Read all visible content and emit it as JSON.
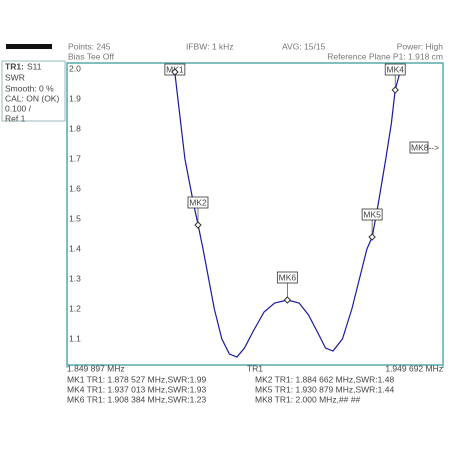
{
  "header": {
    "points": "Points: 245",
    "ifbw": "IFBW: 1 kHz",
    "avg": "AVG: 15/15",
    "power": "Power: High",
    "bias": "Bias Tee Off",
    "ref_plane": "Reference Plane P1: 1.918 cm"
  },
  "trace_panel": {
    "trace": "TR1:",
    "param": "S11",
    "format": "SWR",
    "smooth": "Smooth: 0 %",
    "cal": "CAL: ON (OK)",
    "scale": "0.100 /",
    "ref": "Ref 1"
  },
  "chart_data": {
    "type": "line",
    "trace_label": "TR1",
    "xlim": [
      1.849897,
      1.949692
    ],
    "xticks": [
      {
        "value": 1.849897,
        "label": "1.849 897 MHz"
      },
      {
        "value": 1.949692,
        "label": "1.949 692 MHz"
      }
    ],
    "ylim": [
      1.0,
      2.02
    ],
    "yticks": [
      1.1,
      1.2,
      1.3,
      1.4,
      1.5,
      1.6,
      1.7,
      1.8,
      1.9,
      {
        "value": 2,
        "label": "2.0"
      }
    ],
    "series": [
      {
        "name": "TR1",
        "color": "#1a1aa0",
        "x": [
          1.8778,
          1.8785,
          1.8798,
          1.8812,
          1.8835,
          1.8847,
          1.886,
          1.8875,
          1.889,
          1.891,
          1.893,
          1.895,
          1.897,
          1.8995,
          1.9022,
          1.905,
          1.9084,
          1.9115,
          1.914,
          1.9165,
          1.9185,
          1.9205,
          1.923,
          1.9255,
          1.9275,
          1.9295,
          1.9309,
          1.9325,
          1.9345,
          1.936,
          1.937,
          1.9385
        ],
        "values": [
          2.0,
          1.99,
          1.85,
          1.7,
          1.55,
          1.48,
          1.4,
          1.3,
          1.2,
          1.1,
          1.05,
          1.04,
          1.07,
          1.13,
          1.19,
          1.22,
          1.23,
          1.22,
          1.18,
          1.12,
          1.07,
          1.06,
          1.1,
          1.2,
          1.3,
          1.4,
          1.44,
          1.55,
          1.7,
          1.82,
          1.93,
          2.0
        ]
      }
    ],
    "markers": [
      {
        "label": "MK1",
        "x": 1.878527,
        "y": 1.99
      },
      {
        "label": "MK2",
        "x": 1.884662,
        "y": 1.48
      },
      {
        "label": "MK6",
        "x": 1.908384,
        "y": 1.23
      },
      {
        "label": "MK5",
        "x": 1.930879,
        "y": 1.44
      },
      {
        "label": "MK4",
        "x": 1.937013,
        "y": 1.93
      }
    ],
    "offscale_marker": "MK8-->",
    "readouts": [
      "MK1 TR1:  1.878 527 MHz,SWR:1.99",
      "MK2 TR1:  1.884 662 MHz,SWR:1.48",
      "MK4 TR1:  1.937 013 MHz,SWR:1.93",
      "MK5 TR1:  1.930 879 MHz,SWR:1.44",
      "MK6 TR1:  1.908 384 MHz,SWR:1.23",
      "MK8 TR1:  2.000 MHz,## ##"
    ]
  }
}
